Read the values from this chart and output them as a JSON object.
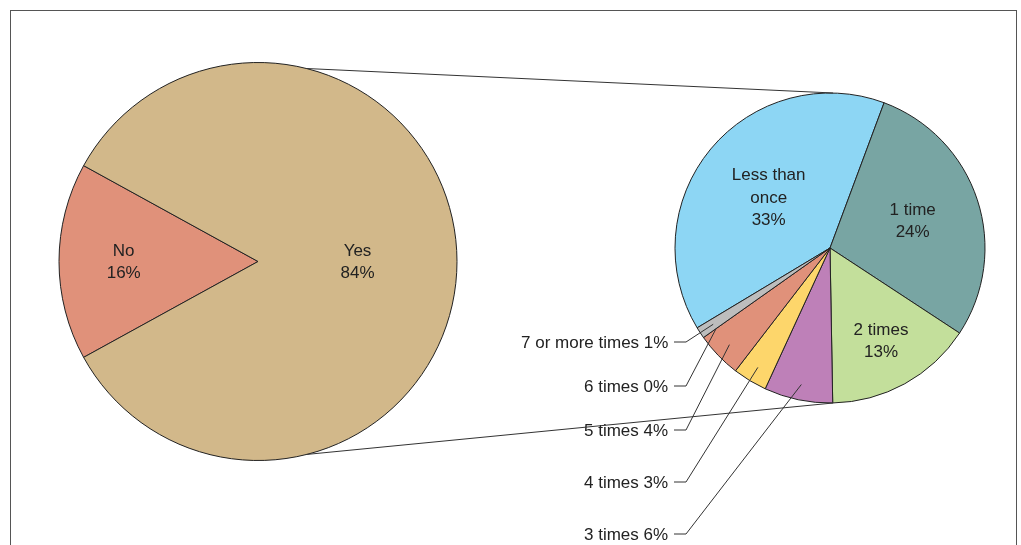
{
  "chart_data": [
    {
      "type": "pie",
      "categories": [
        "No",
        "Yes"
      ],
      "values": [
        16,
        84
      ],
      "colors": [
        "#e0917a",
        "#d2b88a"
      ],
      "value_labels": [
        "16%",
        "84%"
      ]
    },
    {
      "type": "pie",
      "categories": [
        "Less than once",
        "1 time",
        "2 times",
        "3 times",
        "4 times",
        "5 times",
        "6 times",
        "7 or more times"
      ],
      "values": [
        33,
        24,
        13,
        6,
        3,
        4,
        0,
        1
      ],
      "colors": [
        "#8dd6f4",
        "#78a5a3",
        "#c3df9b",
        "#be80b8",
        "#fdd66b",
        "#e0917a",
        "#c9a0a0",
        "#bdbdbd"
      ],
      "value_labels": [
        "33%",
        "24%",
        "13%",
        "6%",
        "3%",
        "4%",
        "0%",
        "1%"
      ]
    }
  ]
}
